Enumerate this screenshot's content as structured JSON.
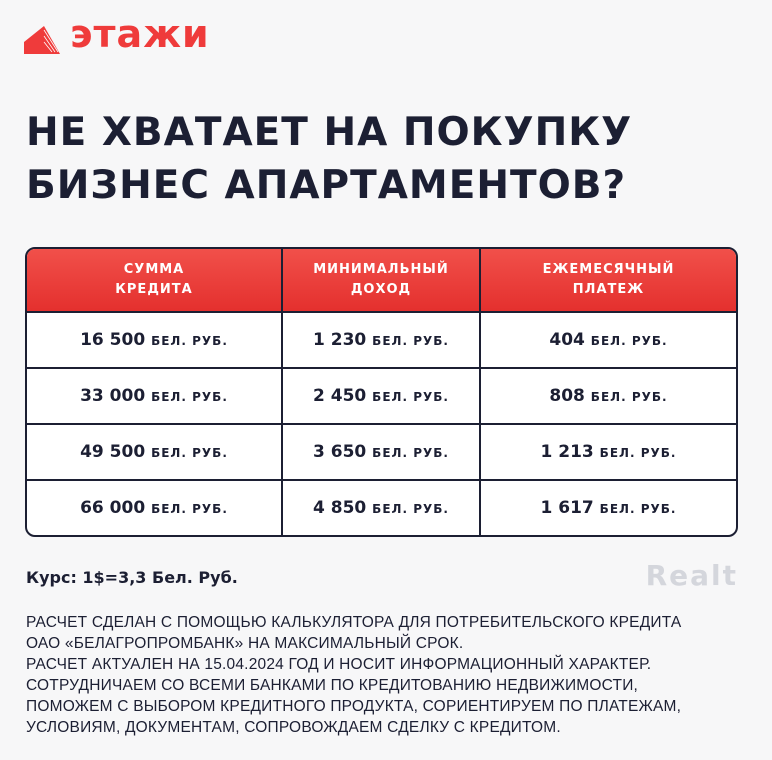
{
  "brand": {
    "name": "этажи",
    "color": "#ef3b3b"
  },
  "title": {
    "line1": "НЕ ХВАТАЕТ НА ПОКУПКУ",
    "line2": "БИЗНЕС АПАРТАМЕНТОВ?"
  },
  "table": {
    "headers": [
      [
        "СУММА",
        "КРЕДИТА"
      ],
      [
        "МИНИМАЛЬНЫЙ",
        "ДОХОД"
      ],
      [
        "ЕЖЕМЕСЯЧНЫЙ",
        "ПЛАТЕЖ"
      ]
    ],
    "unit": "БЕЛ. РУБ.",
    "rows": [
      [
        "16 500",
        "1 230",
        "404"
      ],
      [
        "33 000",
        "2 450",
        "808"
      ],
      [
        "49 500",
        "3 650",
        "1 213"
      ],
      [
        "66 000",
        "4 850",
        "1 617"
      ]
    ]
  },
  "rate": "Курс: 1$=3,3 Бел. Руб.",
  "notes": [
    "РАСЧЕТ СДЕЛАН С ПОМОЩЬЮ КАЛЬКУЛЯТОРА ДЛЯ ПОТРЕБИТЕЛЬСКОГО КРЕДИТА",
    "ОАО «БЕЛАГРОПРОМБАНК» НА МАКСИМАЛЬНЫЙ СРОК.",
    "РАСЧЕТ АКТУАЛЕН НА 15.04.2024 ГОД И НОСИТ ИНФОРМАЦИОННЫЙ ХАРАКТЕР.",
    "СОТРУДНИЧАЕМ СО ВСЕМИ БАНКАМИ ПО КРЕДИТОВАНИЮ НЕДВИЖИМОСТИ,",
    "ПОМОЖЕМ С ВЫБОРОМ КРЕДИТНОГО ПРОДУКТА, СОРИЕНТИРУЕМ ПО ПЛАТЕЖАМ,",
    "УСЛОВИЯМ, ДОКУМЕНТАМ, СОПРОВОЖДАЕМ СДЕЛКУ С КРЕДИТОМ."
  ],
  "watermark": "Realt"
}
